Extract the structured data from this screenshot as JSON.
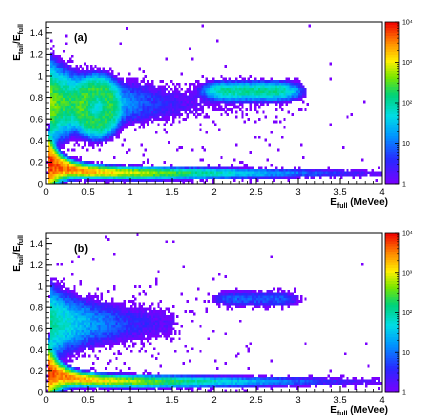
{
  "chart_data": [
    {
      "type": "heatmap",
      "panel_label": "(a)",
      "xlabel": {
        "main": "E",
        "sub": "full",
        "rest": " (MeVee)"
      },
      "ylabel": {
        "main": "E",
        "sub": "tail",
        "mid": "/E",
        "sub2": "full"
      },
      "xlim": [
        0,
        4
      ],
      "ylim": [
        0,
        1.5
      ],
      "x_ticks": [
        "0",
        "0.5",
        "1",
        "1.5",
        "2",
        "2.5",
        "3",
        "3.5",
        "4"
      ],
      "y_ticks": [
        "0",
        "0.2",
        "0.4",
        "0.6",
        "0.8",
        "1",
        "1.2",
        "1.4"
      ],
      "colorbar": {
        "scale": "log",
        "range": [
          1,
          10000
        ],
        "ticks": [
          "1",
          "10",
          "10²",
          "10³",
          "10⁴"
        ]
      },
      "components": [
        {
          "name": "gamma band",
          "x_range": [
            0.02,
            4.0
          ],
          "ratio_near_zero": 0.2,
          "ratio_high_energy": 0.1,
          "peak_counts": 8000
        },
        {
          "name": "neutron band",
          "x_range": [
            0.05,
            3.0
          ],
          "ratio": 0.75,
          "peak_counts": 600
        },
        {
          "name": "alpha loop",
          "center": [
            0.6,
            0.72
          ],
          "peak_counts": 200
        },
        {
          "name": "high-ratio cluster",
          "x_range": [
            1.9,
            3.0
          ],
          "ratio": 0.86,
          "peak_counts": 120
        }
      ]
    },
    {
      "type": "heatmap",
      "panel_label": "(b)",
      "xlabel": {
        "main": "E",
        "sub": "full",
        "rest": " (MeVee)"
      },
      "ylabel": {
        "main": "E",
        "sub": "tail",
        "mid": "/E",
        "sub2": "full"
      },
      "xlim": [
        0,
        4
      ],
      "ylim": [
        0,
        1.5
      ],
      "x_ticks": [
        "0",
        "0.5",
        "1",
        "1.5",
        "2",
        "2.5",
        "3",
        "3.5",
        "4"
      ],
      "y_ticks": [
        "0",
        "0.2",
        "0.4",
        "0.6",
        "0.8",
        "1",
        "1.2",
        "1.4"
      ],
      "colorbar": {
        "scale": "log",
        "range": [
          1,
          10000
        ],
        "ticks": [
          "1",
          "10",
          "10²",
          "10³",
          "10⁴"
        ]
      },
      "components": [
        {
          "name": "gamma band",
          "x_range": [
            0.02,
            4.0
          ],
          "ratio_near_zero": 0.2,
          "ratio_high_energy": 0.1,
          "peak_counts": 6000
        },
        {
          "name": "neutron band",
          "x_range": [
            0.05,
            1.5
          ],
          "ratio": 0.65,
          "peak_counts": 150
        },
        {
          "name": "high-ratio cluster",
          "x_range": [
            2.0,
            3.0
          ],
          "ratio": 0.88,
          "peak_counts": 8
        }
      ]
    }
  ]
}
